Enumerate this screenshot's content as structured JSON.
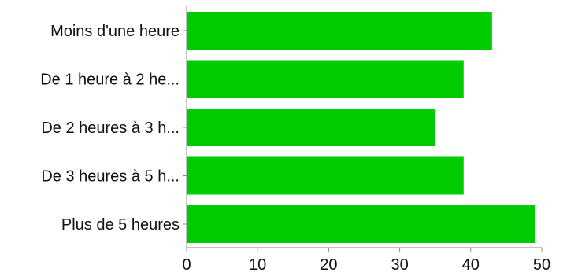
{
  "chart_data": {
    "type": "bar",
    "orientation": "horizontal",
    "categories": [
      "Moins d'une heure",
      "De 1 heure à 2 he...",
      "De 2 heures à 3 h...",
      "De 3 heures à 5 h...",
      "Plus de 5 heures"
    ],
    "values": [
      43,
      39,
      35,
      39,
      49
    ],
    "xlim": [
      0,
      50
    ],
    "xticks": [
      "0",
      "10",
      "20",
      "30",
      "40",
      "50"
    ],
    "grid": false,
    "legend": "none",
    "bar_color": "#00cc00",
    "axis_color": "#888888",
    "title": "",
    "xlabel": "",
    "ylabel": ""
  }
}
